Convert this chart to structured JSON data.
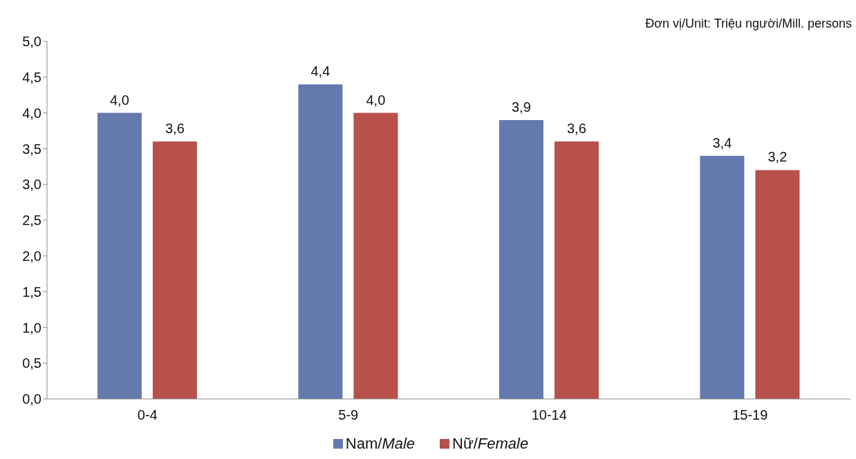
{
  "chart_data": {
    "type": "bar",
    "subtitle": "Đơn vị/Unit: Triệu người/Mill. persons",
    "categories": [
      "0-4",
      "5-9",
      "10-14",
      "15-19"
    ],
    "series": [
      {
        "name": "Nam/Male",
        "color": "#6479ae",
        "values": [
          4.0,
          4.4,
          3.9,
          3.4
        ],
        "value_labels": [
          "4,0",
          "4,4",
          "3,9",
          "3,4"
        ]
      },
      {
        "name": "Nữ/Female",
        "color": "#b8504b",
        "values": [
          3.6,
          4.0,
          3.6,
          3.2
        ],
        "value_labels": [
          "3,6",
          "4,0",
          "3,6",
          "3,2"
        ]
      }
    ],
    "ylim": [
      0,
      5
    ],
    "yticks": [
      {
        "value": 0,
        "label": "0,0"
      },
      {
        "value": 0.5,
        "label": "0,5"
      },
      {
        "value": 1,
        "label": "1,0"
      },
      {
        "value": 1.5,
        "label": "1,5"
      },
      {
        "value": 2,
        "label": "2,0"
      },
      {
        "value": 2.5,
        "label": "2,5"
      },
      {
        "value": 3,
        "label": "3,0"
      },
      {
        "value": 3.5,
        "label": "3,5"
      },
      {
        "value": 4,
        "label": "4,0"
      },
      {
        "value": 4.5,
        "label": "4,5"
      },
      {
        "value": 5,
        "label": "5,0"
      }
    ],
    "grid": false,
    "legend": "bottom"
  }
}
